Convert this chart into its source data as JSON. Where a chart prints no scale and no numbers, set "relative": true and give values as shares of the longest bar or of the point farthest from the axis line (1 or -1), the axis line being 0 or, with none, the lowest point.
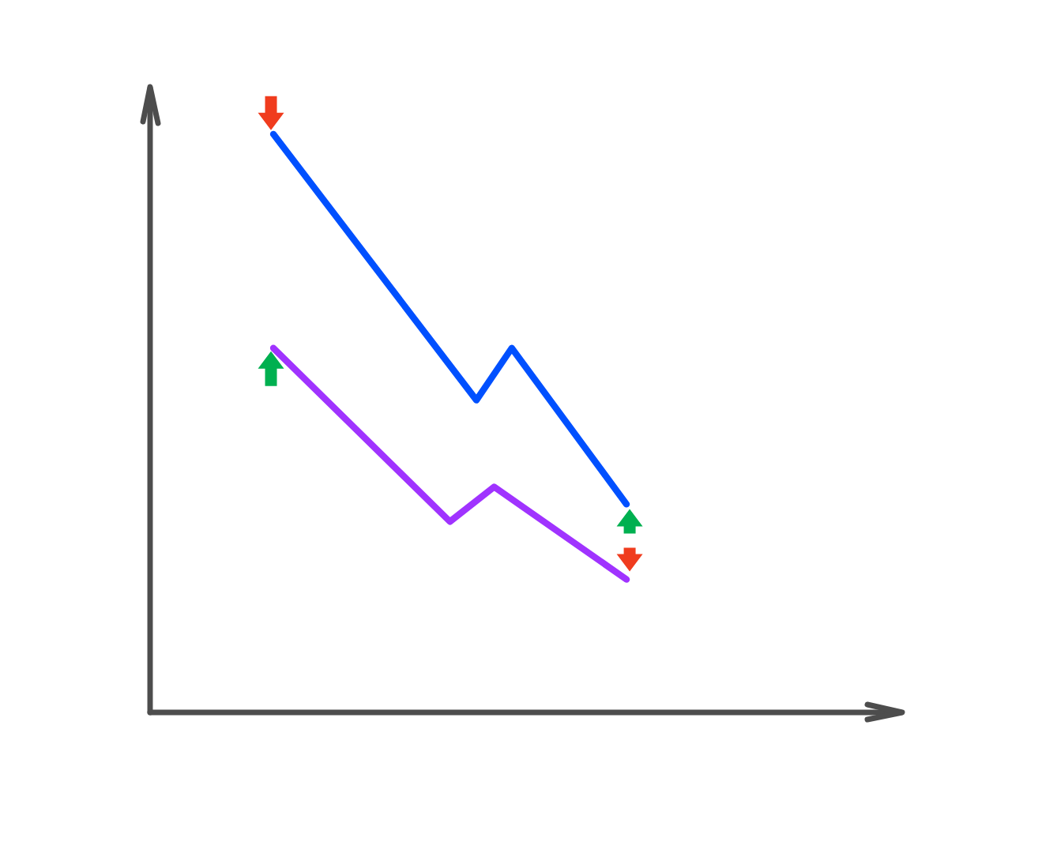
{
  "chart_data": {
    "type": "line",
    "relative": true,
    "tick_labels": false,
    "line_style": "solid",
    "categories": [
      null,
      null,
      null,
      null,
      null,
      null,
      null,
      null,
      null,
      null,
      null,
      null,
      null,
      null,
      null,
      null,
      null,
      null,
      null,
      null,
      null,
      null,
      null,
      null,
      null,
      null,
      null,
      null,
      null,
      null,
      null,
      null,
      null,
      null,
      null,
      null,
      null,
      null,
      null,
      null,
      null
    ],
    "series": [
      {
        "color": "#0050ff",
        "values": [
          1,
          null,
          null,
          null,
          null,
          null,
          null,
          null,
          null,
          null,
          null,
          null,
          null,
          null,
          null,
          null,
          null,
          null,
          null,
          null,
          null,
          null,
          null,
          0.54,
          null,
          null,
          null,
          0.63,
          null,
          null,
          null,
          null,
          null,
          null,
          null,
          null,
          null,
          null,
          null,
          null,
          0.36
        ]
      },
      {
        "color": "#a033ff",
        "values": [
          0.63,
          null,
          null,
          null,
          null,
          null,
          null,
          null,
          null,
          null,
          null,
          null,
          null,
          null,
          null,
          null,
          null,
          null,
          null,
          null,
          0.33,
          null,
          null,
          null,
          null,
          0.39,
          null,
          null,
          null,
          null,
          null,
          null,
          null,
          null,
          null,
          null,
          null,
          null,
          null,
          null,
          0.23
        ]
      }
    ]
  }
}
